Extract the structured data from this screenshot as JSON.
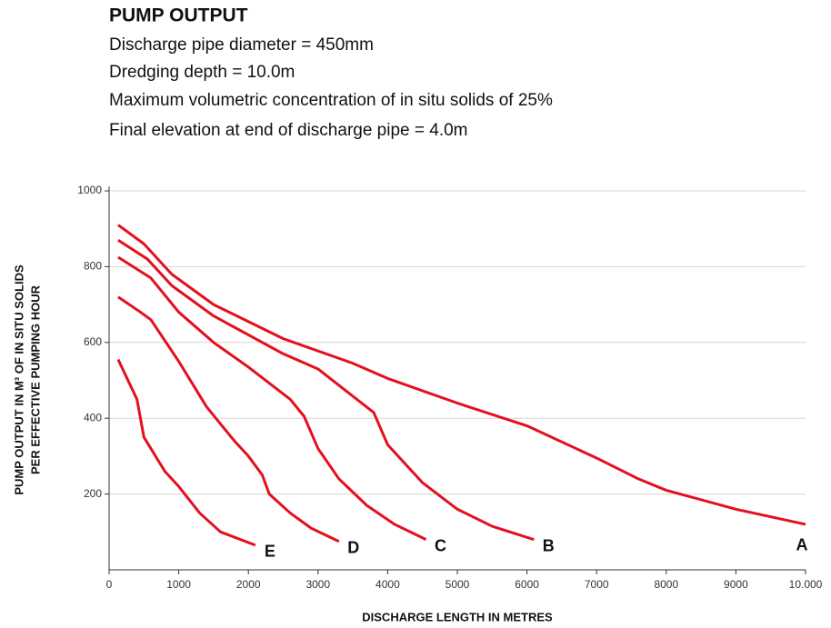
{
  "chart_data": {
    "type": "line",
    "title": "PUMP OUTPUT",
    "subtitle": [
      "Discharge pipe diameter = 450mm",
      "Dredging depth = 10.0m",
      "Maximum volumetric concentration of in situ solids of 25%",
      "Final elevation at end of discharge pipe = 4.0m"
    ],
    "x_label": "DISCHARGE LENGTH IN METRES",
    "y_label": [
      "PUMP OUTPUT IN M³ OF IN SITU SOLIDS",
      "PER EFFECTIVE PUMPING HOUR"
    ],
    "xlim": [
      0,
      10000
    ],
    "xticks": [
      0,
      1000,
      2000,
      3000,
      4000,
      5000,
      6000,
      7000,
      8000,
      9000,
      {
        "value": 10000,
        "label": "10.000"
      }
    ],
    "ylim": [
      0,
      1000
    ],
    "yticks": [
      200,
      400,
      600,
      800,
      1000
    ],
    "grid": true,
    "series": [
      {
        "name": "A",
        "color": "#e3101e",
        "x": [
          130,
          500,
          900,
          1500,
          2500,
          3500,
          4000,
          5000,
          6000,
          7000,
          7600,
          8000,
          9000,
          10000
        ],
        "values": [
          910,
          860,
          780,
          700,
          610,
          545,
          505,
          440,
          380,
          295,
          240,
          210,
          160,
          120
        ]
      },
      {
        "name": "B",
        "color": "#e3101e",
        "x": [
          130,
          550,
          900,
          1500,
          2500,
          3000,
          3800,
          4000,
          4500,
          5000,
          5500,
          6100
        ],
        "values": [
          870,
          820,
          750,
          670,
          570,
          530,
          415,
          330,
          230,
          160,
          115,
          80
        ]
      },
      {
        "name": "C",
        "color": "#e3101e",
        "x": [
          130,
          600,
          1000,
          1500,
          2000,
          2600,
          2800,
          3000,
          3300,
          3700,
          4100,
          4550
        ],
        "values": [
          825,
          770,
          680,
          600,
          535,
          450,
          405,
          320,
          240,
          170,
          120,
          80
        ]
      },
      {
        "name": "D",
        "color": "#e3101e",
        "x": [
          130,
          450,
          600,
          1000,
          1400,
          1800,
          2000,
          2200,
          2300,
          2600,
          2900,
          3300
        ],
        "values": [
          720,
          680,
          660,
          550,
          430,
          340,
          300,
          250,
          200,
          150,
          110,
          75
        ]
      },
      {
        "name": "E",
        "color": "#e3101e",
        "x": [
          130,
          400,
          500,
          600,
          800,
          1000,
          1300,
          1600,
          2100
        ],
        "values": [
          555,
          450,
          350,
          320,
          260,
          220,
          150,
          100,
          65
        ]
      }
    ]
  }
}
